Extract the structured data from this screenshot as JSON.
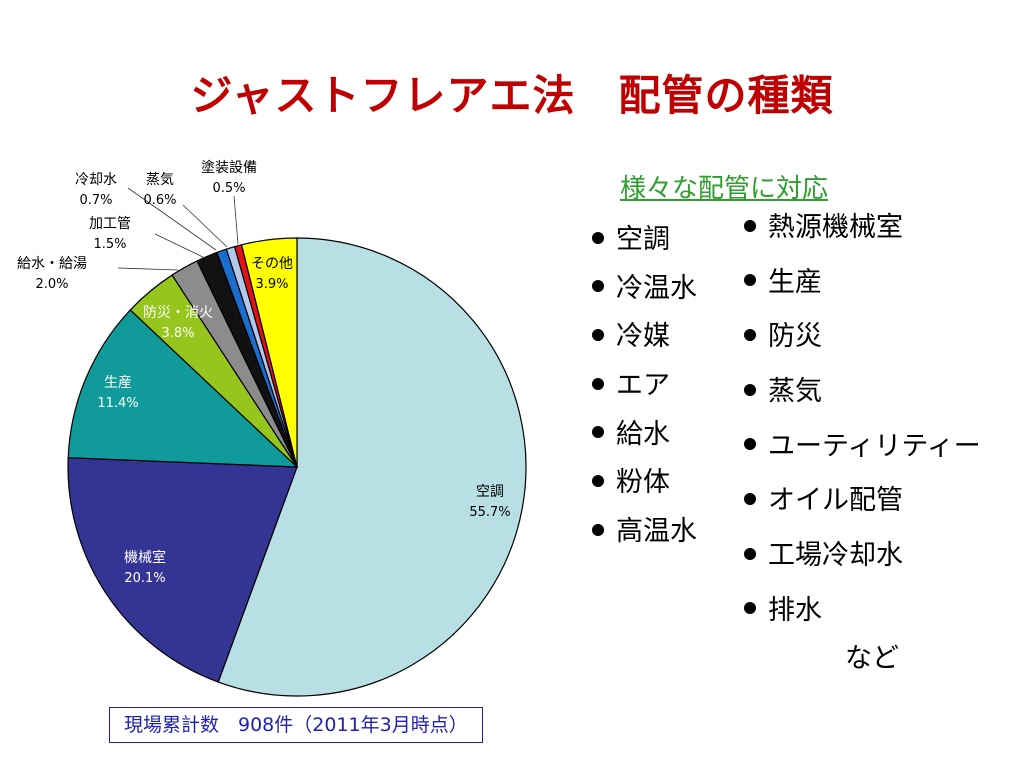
{
  "title": "ジャストフレアエ法　配管の種類",
  "chart_data": {
    "type": "pie",
    "slices": [
      {
        "label": "空調",
        "value": 55.7,
        "value_label": "55.7%",
        "color": "#b8e0e4"
      },
      {
        "label": "機械室",
        "value": 20.1,
        "value_label": "20.1%",
        "color": "#343494"
      },
      {
        "label": "生産",
        "value": 11.4,
        "value_label": "11.4%",
        "color": "#109a9a"
      },
      {
        "label": "防災・消火",
        "value": 3.8,
        "value_label": "3.8%",
        "color": "#96c61e"
      },
      {
        "label": "給水・給湯",
        "value": 2.0,
        "value_label": "2.0%",
        "color": "#8c8c8c"
      },
      {
        "label": "加工管",
        "value": 1.5,
        "value_label": "1.5%",
        "color": "#111111"
      },
      {
        "label": "冷却水",
        "value": 0.7,
        "value_label": "0.7%",
        "color": "#1a6ecc"
      },
      {
        "label": "蒸気",
        "value": 0.6,
        "value_label": "0.6%",
        "color": "#b4c8ec"
      },
      {
        "label": "塗装設備",
        "value": 0.5,
        "value_label": "0.5%",
        "color": "#e01414"
      },
      {
        "label": "その他",
        "value": 3.9,
        "value_label": "3.9%",
        "color": "#ffff00"
      }
    ]
  },
  "right_panel": {
    "heading": "様々な配管に対応",
    "left_items": [
      "空調",
      "冷温水",
      "冷媒",
      "エア",
      "給水",
      "粉体",
      "高温水"
    ],
    "right_items": [
      "熱源機械室",
      "生産",
      "防災",
      "蒸気",
      "ユーティリティー",
      "オイル配管",
      "工場冷却水",
      "排水"
    ],
    "etc": "など"
  },
  "footer": "現場累計数　908件（2011年3月時点）"
}
